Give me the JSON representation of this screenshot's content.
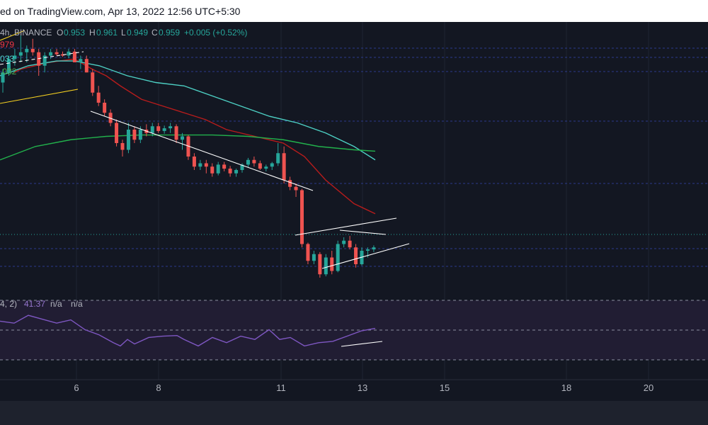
{
  "header": {
    "publish_text": "ed on TradingView.com, Apr 13, 2022 12:56 UTC+5:30"
  },
  "legend": {
    "symbol_suffix": "4h, BINANCE",
    "o_label": "O",
    "o_value": "0.953",
    "h_label": "H",
    "h_value": "0.961",
    "l_label": "L",
    "l_value": "0.949",
    "c_label": "C",
    "c_value": "0.959",
    "change": "+0.005 (+0.52%)"
  },
  "ma_labels": [
    {
      "text": "979",
      "color": "#f23645"
    },
    {
      "text": "033",
      "color": "#4dd0c4"
    },
    {
      "text": ".032",
      "color": "#4caf50"
    }
  ],
  "rsi_legend": {
    "params": "4, 2)",
    "value": "41.37",
    "na1": "n/a",
    "na2": "n/a"
  },
  "colors": {
    "up": "#26a69a",
    "down": "#ef5350",
    "ma_red": "#b71c1c",
    "ma_teal": "#4dd0c4",
    "ma_green": "#22b14c",
    "trendline": "#ffffff",
    "rsi_line": "#7e57c2",
    "rsi_band": "#2a2340",
    "grid": "#1f2433",
    "dotted": "#2b3a8c"
  },
  "chart_data": {
    "type": "candlestick",
    "x_ticks": [
      "6",
      "8",
      "11",
      "13",
      "15",
      "18",
      "20"
    ],
    "candles": [
      [
        0.99,
        1.01,
        0.975,
        1.005
      ],
      [
        1.005,
        1.03,
        1.0,
        1.025
      ],
      [
        1.025,
        1.04,
        1.015,
        1.03
      ],
      [
        1.03,
        1.06,
        1.02,
        1.035
      ],
      [
        1.035,
        1.045,
        1.02,
        1.04
      ],
      [
        1.04,
        1.055,
        1.03,
        1.035
      ],
      [
        1.035,
        1.04,
        1.0,
        1.015
      ],
      [
        1.015,
        1.035,
        1.005,
        1.03
      ],
      [
        1.03,
        1.04,
        1.025,
        1.035
      ],
      [
        1.035,
        1.04,
        1.03,
        1.032
      ],
      [
        1.032,
        1.036,
        1.028,
        1.03
      ],
      [
        1.03,
        1.04,
        1.026,
        1.036
      ],
      [
        1.036,
        1.04,
        1.02,
        1.02
      ],
      [
        1.02,
        1.03,
        1.01,
        1.025
      ],
      [
        1.025,
        1.03,
        1.005,
        1.005
      ],
      [
        1.005,
        1.01,
        0.97,
        0.975
      ],
      [
        0.975,
        0.985,
        0.955,
        0.96
      ],
      [
        0.96,
        0.965,
        0.94,
        0.945
      ],
      [
        0.945,
        0.95,
        0.925,
        0.93
      ],
      [
        0.93,
        0.935,
        0.895,
        0.9
      ],
      [
        0.9,
        0.905,
        0.88,
        0.89
      ],
      [
        0.89,
        0.93,
        0.885,
        0.92
      ],
      [
        0.92,
        0.925,
        0.9,
        0.905
      ],
      [
        0.905,
        0.925,
        0.9,
        0.92
      ],
      [
        0.92,
        0.928,
        0.91,
        0.915
      ],
      [
        0.915,
        0.93,
        0.91,
        0.925
      ],
      [
        0.925,
        0.93,
        0.915,
        0.918
      ],
      [
        0.918,
        0.926,
        0.914,
        0.922
      ],
      [
        0.922,
        0.93,
        0.915,
        0.925
      ],
      [
        0.925,
        0.928,
        0.9,
        0.905
      ],
      [
        0.905,
        0.915,
        0.89,
        0.91
      ],
      [
        0.91,
        0.912,
        0.875,
        0.88
      ],
      [
        0.88,
        0.885,
        0.86,
        0.865
      ],
      [
        0.865,
        0.875,
        0.86,
        0.87
      ],
      [
        0.87,
        0.875,
        0.855,
        0.865
      ],
      [
        0.865,
        0.87,
        0.85,
        0.855
      ],
      [
        0.855,
        0.872,
        0.852,
        0.868
      ],
      [
        0.868,
        0.872,
        0.858,
        0.862
      ],
      [
        0.862,
        0.866,
        0.85,
        0.855
      ],
      [
        0.855,
        0.862,
        0.85,
        0.86
      ],
      [
        0.86,
        0.87,
        0.856,
        0.868
      ],
      [
        0.868,
        0.878,
        0.864,
        0.875
      ],
      [
        0.875,
        0.88,
        0.865,
        0.87
      ],
      [
        0.87,
        0.874,
        0.86,
        0.862
      ],
      [
        0.862,
        0.868,
        0.858,
        0.865
      ],
      [
        0.865,
        0.872,
        0.86,
        0.87
      ],
      [
        0.87,
        0.9,
        0.866,
        0.885
      ],
      [
        0.885,
        0.895,
        0.84,
        0.845
      ],
      [
        0.845,
        0.85,
        0.83,
        0.835
      ],
      [
        0.835,
        0.84,
        0.82,
        0.83
      ],
      [
        0.83,
        0.832,
        0.745,
        0.75
      ],
      [
        0.75,
        0.752,
        0.72,
        0.725
      ],
      [
        0.725,
        0.74,
        0.72,
        0.735
      ],
      [
        0.735,
        0.738,
        0.7,
        0.705
      ],
      [
        0.705,
        0.735,
        0.702,
        0.73
      ],
      [
        0.73,
        0.74,
        0.705,
        0.71
      ],
      [
        0.71,
        0.755,
        0.708,
        0.75
      ],
      [
        0.75,
        0.76,
        0.745,
        0.755
      ],
      [
        0.755,
        0.762,
        0.742,
        0.745
      ],
      [
        0.745,
        0.75,
        0.715,
        0.72
      ],
      [
        0.72,
        0.745,
        0.718,
        0.74
      ],
      [
        0.74,
        0.745,
        0.73,
        0.742
      ],
      [
        0.742,
        0.748,
        0.738,
        0.745
      ]
    ],
    "ma_red": [
      [
        0.02,
        1.005
      ],
      [
        0.03,
        1.01
      ],
      [
        0.07,
        1.02
      ],
      [
        0.105,
        1.025
      ],
      [
        0.13,
        1.01
      ],
      [
        0.15,
        1.0
      ],
      [
        0.17,
        0.985
      ],
      [
        0.2,
        0.965
      ],
      [
        0.23,
        0.955
      ],
      [
        0.26,
        0.945
      ],
      [
        0.29,
        0.935
      ],
      [
        0.32,
        0.92
      ],
      [
        0.36,
        0.91
      ],
      [
        0.4,
        0.9
      ],
      [
        0.43,
        0.88
      ],
      [
        0.46,
        0.845
      ],
      [
        0.5,
        0.81
      ],
      [
        0.53,
        0.795
      ]
    ],
    "ma_teal": [
      [
        0.0,
        1.0
      ],
      [
        0.04,
        1.015
      ],
      [
        0.08,
        1.022
      ],
      [
        0.105,
        1.022
      ],
      [
        0.14,
        1.015
      ],
      [
        0.18,
        1.0
      ],
      [
        0.22,
        0.99
      ],
      [
        0.26,
        0.985
      ],
      [
        0.3,
        0.97
      ],
      [
        0.34,
        0.955
      ],
      [
        0.38,
        0.94
      ],
      [
        0.42,
        0.93
      ],
      [
        0.46,
        0.915
      ],
      [
        0.5,
        0.895
      ],
      [
        0.53,
        0.875
      ]
    ],
    "ma_green": [
      [
        0.0,
        0.875
      ],
      [
        0.05,
        0.895
      ],
      [
        0.1,
        0.905
      ],
      [
        0.15,
        0.91
      ],
      [
        0.2,
        0.912
      ],
      [
        0.25,
        0.912
      ],
      [
        0.3,
        0.912
      ],
      [
        0.35,
        0.91
      ],
      [
        0.4,
        0.905
      ],
      [
        0.45,
        0.895
      ],
      [
        0.5,
        0.89
      ],
      [
        0.53,
        0.888
      ]
    ],
    "rsi": [
      [
        0.0,
        43
      ],
      [
        0.02,
        40
      ],
      [
        0.04,
        52
      ],
      [
        0.06,
        46
      ],
      [
        0.08,
        40
      ],
      [
        0.1,
        45
      ],
      [
        0.12,
        30
      ],
      [
        0.14,
        22
      ],
      [
        0.16,
        10
      ],
      [
        0.17,
        5
      ],
      [
        0.18,
        15
      ],
      [
        0.19,
        8
      ],
      [
        0.21,
        18
      ],
      [
        0.23,
        20
      ],
      [
        0.25,
        21
      ],
      [
        0.26,
        15
      ],
      [
        0.28,
        5
      ],
      [
        0.3,
        18
      ],
      [
        0.32,
        10
      ],
      [
        0.34,
        20
      ],
      [
        0.36,
        15
      ],
      [
        0.38,
        30
      ],
      [
        0.395,
        15
      ],
      [
        0.41,
        18
      ],
      [
        0.43,
        5
      ],
      [
        0.45,
        10
      ],
      [
        0.47,
        12
      ],
      [
        0.49,
        20
      ],
      [
        0.51,
        28
      ],
      [
        0.53,
        32
      ]
    ],
    "rsi_ylim": [
      0,
      100
    ],
    "price_ylim": [
      0.68,
      1.08
    ]
  }
}
